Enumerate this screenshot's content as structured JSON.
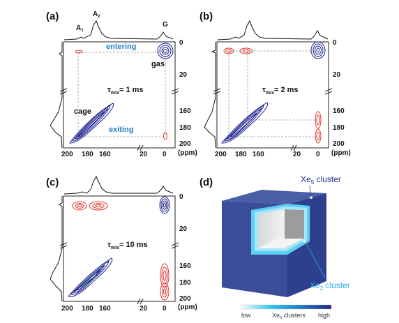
{
  "panels": {
    "a": {
      "label": "(a)",
      "tau_value": "= 1 ms",
      "peaks": {
        "a1": "A",
        "a1_sub": "1",
        "a2": "A",
        "a2_sub": "2",
        "g": "G"
      },
      "annotations": {
        "entering": "entering",
        "exiting": "exiting",
        "gas": "gas",
        "cage": "cage"
      }
    },
    "b": {
      "label": "(b)",
      "tau_value": "= 2 ms"
    },
    "c": {
      "label": "(c)",
      "tau_value": "= 10 ms"
    },
    "d": {
      "label": "(d)"
    }
  },
  "tau": {
    "symbol": "τ",
    "sub": "mix"
  },
  "axes": {
    "x_ticks": [
      "200",
      "180",
      "160",
      "20",
      "0"
    ],
    "y_ticks_top": [
      "0",
      "20"
    ],
    "y_ticks_bottom": [
      "160",
      "180",
      "200"
    ],
    "unit": "(ppm)"
  },
  "cube": {
    "xe5_main": "Xe",
    "xe5_sub": "5",
    "xe5_rest": " cluster",
    "xe2_main": "Xe",
    "xe2_sub": "2",
    "xe2_rest": " cluster"
  },
  "legend": {
    "low": "low",
    "high": "high",
    "middle_main": "Xe",
    "middle_sub": "n",
    "middle_rest": " clusters",
    "colors": {
      "low": "#ffffff",
      "mid": "#29c4f0",
      "high": "#1f2a8a"
    }
  },
  "colors": {
    "blue_contour": "#1a1f8c",
    "red_contour": "#e0382c",
    "accent": "#1f7fc6"
  }
}
